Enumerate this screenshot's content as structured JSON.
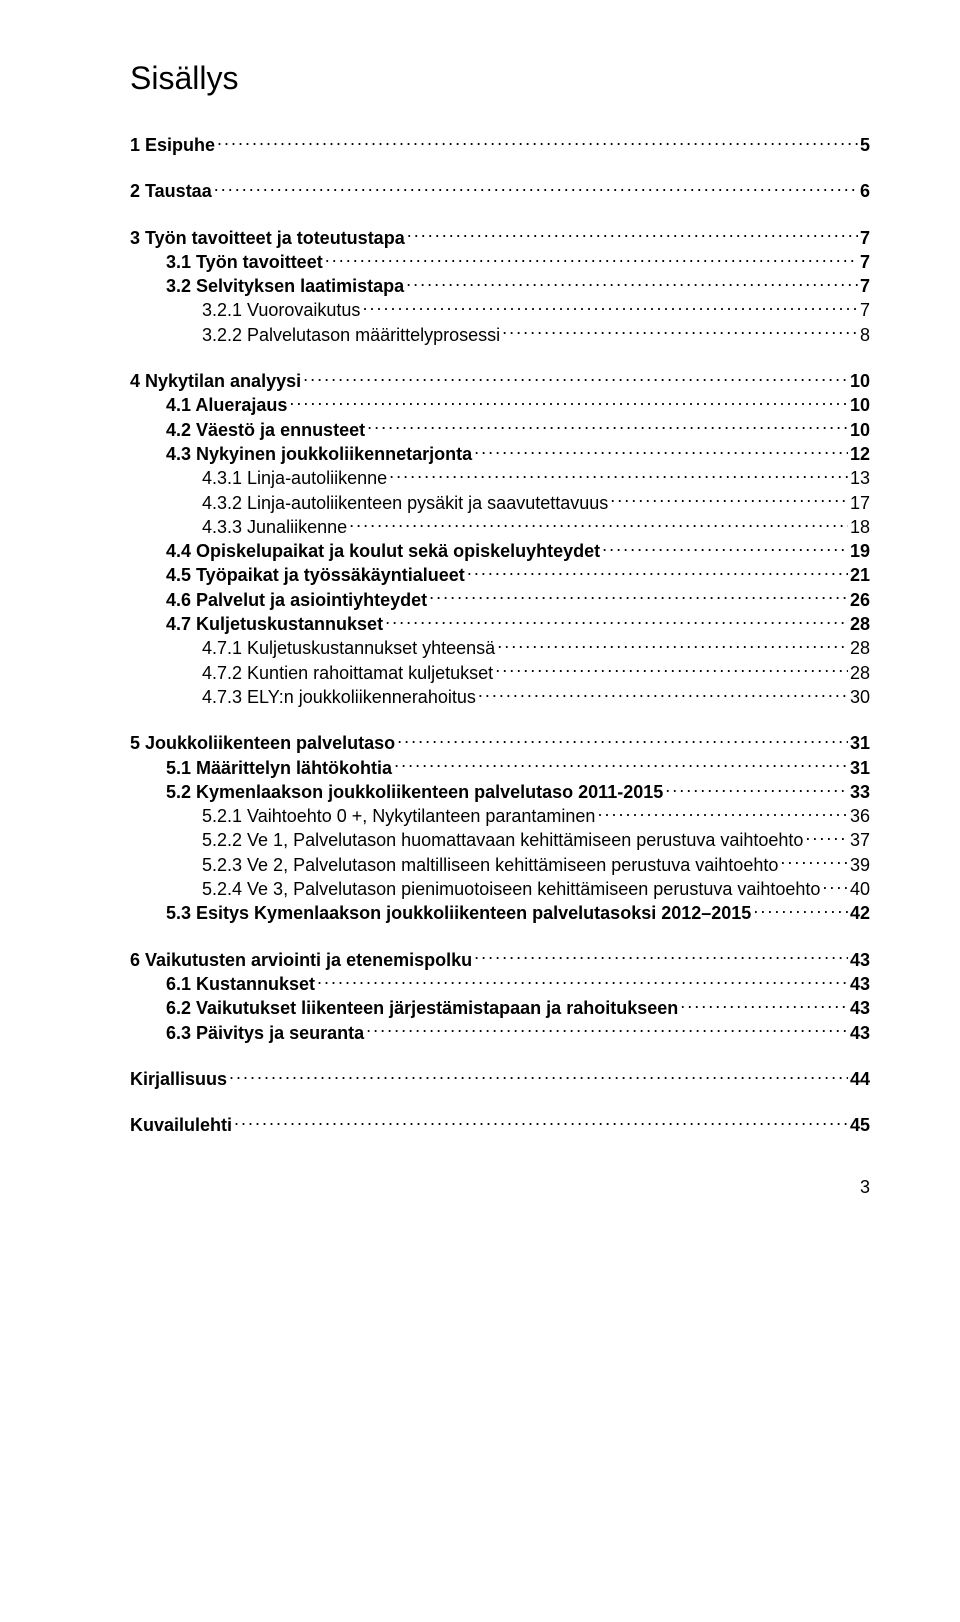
{
  "title": "Sisällys",
  "page_number": "3",
  "toc": [
    {
      "level": 1,
      "label": "1 Esipuhe",
      "page": "5"
    },
    {
      "level": 1,
      "label": "2 Taustaa",
      "page": "6"
    },
    {
      "level": 1,
      "label": "3 Työn tavoitteet ja toteutustapa",
      "page": "7"
    },
    {
      "level": 2,
      "label": "3.1 Työn tavoitteet",
      "page": "7"
    },
    {
      "level": 2,
      "label": "3.2 Selvityksen laatimistapa",
      "page": "7"
    },
    {
      "level": 3,
      "label": "3.2.1 Vuorovaikutus",
      "page": "7"
    },
    {
      "level": 3,
      "label": "3.2.2 Palvelutason määrittelyprosessi",
      "page": "8"
    },
    {
      "level": 1,
      "label": "4 Nykytilan analyysi",
      "page": "10"
    },
    {
      "level": 2,
      "label": "4.1 Aluerajaus",
      "page": "10"
    },
    {
      "level": 2,
      "label": "4.2 Väestö ja ennusteet",
      "page": "10"
    },
    {
      "level": 2,
      "label": "4.3 Nykyinen joukkoliikennetarjonta",
      "page": "12"
    },
    {
      "level": 3,
      "label": "4.3.1 Linja-autoliikenne",
      "page": "13"
    },
    {
      "level": 3,
      "label": "4.3.2 Linja-autoliikenteen pysäkit ja saavutettavuus",
      "page": "17"
    },
    {
      "level": 3,
      "label": "4.3.3 Junaliikenne",
      "page": "18"
    },
    {
      "level": 2,
      "label": "4.4 Opiskelupaikat ja koulut sekä opiskeluyhteydet",
      "page": "19"
    },
    {
      "level": 2,
      "label": "4.5 Työpaikat ja työssäkäyntialueet",
      "page": "21"
    },
    {
      "level": 2,
      "label": "4.6 Palvelut ja asiointiyhteydet",
      "page": "26"
    },
    {
      "level": 2,
      "label": "4.7 Kuljetuskustannukset",
      "page": "28"
    },
    {
      "level": 3,
      "label": "4.7.1 Kuljetuskustannukset yhteensä",
      "page": "28"
    },
    {
      "level": 3,
      "label": "4.7.2 Kuntien rahoittamat kuljetukset",
      "page": "28"
    },
    {
      "level": 3,
      "label": "4.7.3 ELY:n joukkoliikennerahoitus",
      "page": "30"
    },
    {
      "level": 1,
      "label": "5 Joukkoliikenteen palvelutaso",
      "page": "31"
    },
    {
      "level": 2,
      "label": "5.1 Määrittelyn lähtökohtia",
      "page": "31"
    },
    {
      "level": 2,
      "label": "5.2 Kymenlaakson joukkoliikenteen palvelutaso 2011-2015",
      "page": "33"
    },
    {
      "level": 3,
      "label": "5.2.1 Vaihtoehto 0 +, Nykytilanteen parantaminen",
      "page": "36"
    },
    {
      "level": 3,
      "label": "5.2.2 Ve 1, Palvelutason huomattavaan kehittämiseen perustuva vaihtoehto",
      "page": "37"
    },
    {
      "level": 3,
      "label": "5.2.3 Ve 2, Palvelutason maltilliseen kehittämiseen perustuva vaihtoehto",
      "page": "39"
    },
    {
      "level": 3,
      "label": "5.2.4 Ve 3, Palvelutason pienimuotoiseen kehittämiseen perustuva vaihtoehto",
      "page": "40"
    },
    {
      "level": 2,
      "label": "5.3 Esitys Kymenlaakson joukkoliikenteen palvelutasoksi 2012–2015",
      "page": "42"
    },
    {
      "level": 1,
      "label": "6 Vaikutusten arviointi ja etenemispolku",
      "page": "43"
    },
    {
      "level": 2,
      "label": "6.1 Kustannukset",
      "page": "43"
    },
    {
      "level": 2,
      "label": "6.2 Vaikutukset liikenteen järjestämistapaan ja rahoitukseen",
      "page": "43"
    },
    {
      "level": 2,
      "label": "6.3 Päivitys ja seuranta",
      "page": "43"
    },
    {
      "level": 1,
      "label": "Kirjallisuus",
      "page": "44"
    },
    {
      "level": 1,
      "label": "Kuvailulehti",
      "page": "45"
    }
  ]
}
